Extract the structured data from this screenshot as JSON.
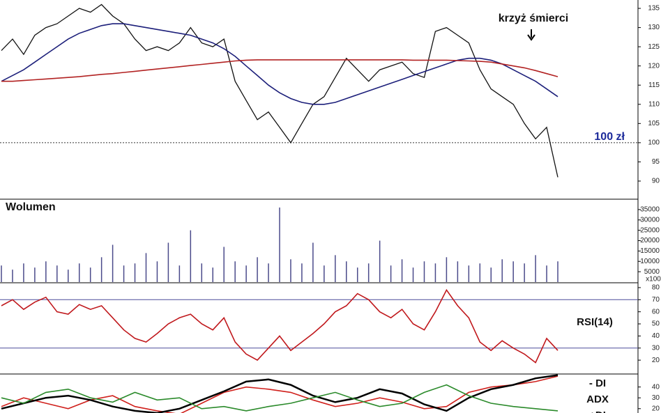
{
  "chart_data": [
    {
      "type": "line",
      "ylim": [
        88,
        137
      ],
      "yticks": [
        90,
        95,
        100,
        105,
        110,
        115,
        120,
        125,
        130,
        135
      ],
      "annotations": [
        "krzyż śmierci",
        "100 zł"
      ],
      "reference_lines": [
        100
      ],
      "series": [
        {
          "color": "#111111",
          "values": [
            124,
            127,
            123,
            128,
            130,
            131,
            133,
            135,
            134,
            136,
            133,
            131,
            127,
            124,
            125,
            124,
            126,
            130,
            126,
            125,
            127,
            116,
            111,
            106,
            108,
            104,
            100,
            105,
            110,
            112,
            117,
            122,
            119,
            116,
            119,
            120,
            121,
            118,
            117,
            129,
            130,
            128,
            126,
            119,
            114,
            112,
            110,
            105,
            101,
            104,
            91
          ]
        },
        {
          "color": "#1c1f7a",
          "values": [
            116,
            117.5,
            119,
            121,
            123,
            125,
            127,
            128.5,
            129.5,
            130.5,
            131,
            131,
            130.5,
            130,
            129.5,
            129,
            128.5,
            128,
            127,
            126,
            124.5,
            122.5,
            120,
            117.5,
            115,
            113,
            111.5,
            110.5,
            110,
            110,
            110.5,
            111.5,
            112.5,
            113.5,
            114.5,
            115.5,
            116.5,
            117.5,
            118.5,
            119.5,
            120.5,
            121.5,
            122,
            122,
            121.5,
            120.5,
            119,
            117.5,
            116,
            114,
            112
          ]
        },
        {
          "color": "#b22222",
          "values": [
            116,
            116,
            116.2,
            116.4,
            116.6,
            116.8,
            117,
            117.2,
            117.5,
            117.8,
            118,
            118.3,
            118.6,
            118.9,
            119.2,
            119.5,
            119.8,
            120.1,
            120.4,
            120.7,
            121,
            121.3,
            121.5,
            121.6,
            121.6,
            121.6,
            121.6,
            121.6,
            121.6,
            121.6,
            121.6,
            121.6,
            121.6,
            121.6,
            121.6,
            121.6,
            121.6,
            121.5,
            121.5,
            121.5,
            121.5,
            121.4,
            121.3,
            121.2,
            121,
            120.5,
            120,
            119.5,
            118.8,
            118,
            117.2
          ]
        }
      ]
    },
    {
      "type": "bar",
      "title": "Wolumen",
      "unit_label": "x100",
      "ylim": [
        0,
        38000
      ],
      "yticks": [
        5000,
        10000,
        15000,
        20000,
        25000,
        30000,
        35000
      ],
      "color": "#4a4a8a",
      "values": [
        8000,
        6000,
        9000,
        7000,
        10000,
        8000,
        6000,
        9000,
        7000,
        12000,
        18000,
        8000,
        9000,
        14000,
        10000,
        19000,
        8000,
        25000,
        9000,
        7000,
        17000,
        10000,
        8000,
        12000,
        9000,
        36000,
        11000,
        9000,
        19000,
        8000,
        13000,
        10000,
        7000,
        9000,
        20000,
        8000,
        11000,
        7000,
        10000,
        9000,
        12000,
        10000,
        8000,
        9000,
        7000,
        11000,
        10000,
        9000,
        13000,
        8000,
        10000
      ]
    },
    {
      "type": "line",
      "title": "RSI(14)",
      "ylim": [
        12,
        84
      ],
      "yticks": [
        20,
        30,
        40,
        50,
        60,
        70,
        80
      ],
      "reference_lines": [
        30,
        70
      ],
      "series": [
        {
          "color": "#c0181c",
          "values": [
            65,
            70,
            62,
            68,
            72,
            60,
            58,
            66,
            62,
            65,
            55,
            45,
            38,
            35,
            42,
            50,
            55,
            58,
            50,
            45,
            55,
            35,
            25,
            20,
            30,
            40,
            28,
            35,
            42,
            50,
            60,
            65,
            75,
            70,
            60,
            55,
            62,
            50,
            45,
            60,
            78,
            65,
            55,
            35,
            28,
            36,
            30,
            25,
            18,
            38,
            28
          ]
        }
      ]
    },
    {
      "type": "line",
      "ylim": [
        16,
        52
      ],
      "yticks": [
        20,
        30,
        40
      ],
      "series": [
        {
          "name": "- DI",
          "color": "#d0201c",
          "values": [
            22,
            30,
            25,
            20,
            28,
            32,
            22,
            18,
            15,
            25,
            35,
            40,
            38,
            35,
            28,
            22,
            25,
            30,
            26,
            20,
            22,
            35,
            40,
            42,
            45,
            50
          ]
        },
        {
          "name": "ADX",
          "color": "#000000",
          "values": [
            20,
            25,
            30,
            32,
            28,
            22,
            18,
            16,
            20,
            28,
            36,
            45,
            47,
            42,
            32,
            26,
            30,
            38,
            34,
            24,
            18,
            30,
            38,
            42,
            48,
            51
          ]
        },
        {
          "name": "+DI",
          "color": "#2a8a2a",
          "values": [
            30,
            25,
            35,
            38,
            30,
            26,
            35,
            28,
            30,
            20,
            22,
            18,
            22,
            25,
            30,
            35,
            28,
            22,
            25,
            35,
            42,
            32,
            25,
            22,
            20,
            18
          ]
        }
      ]
    }
  ]
}
